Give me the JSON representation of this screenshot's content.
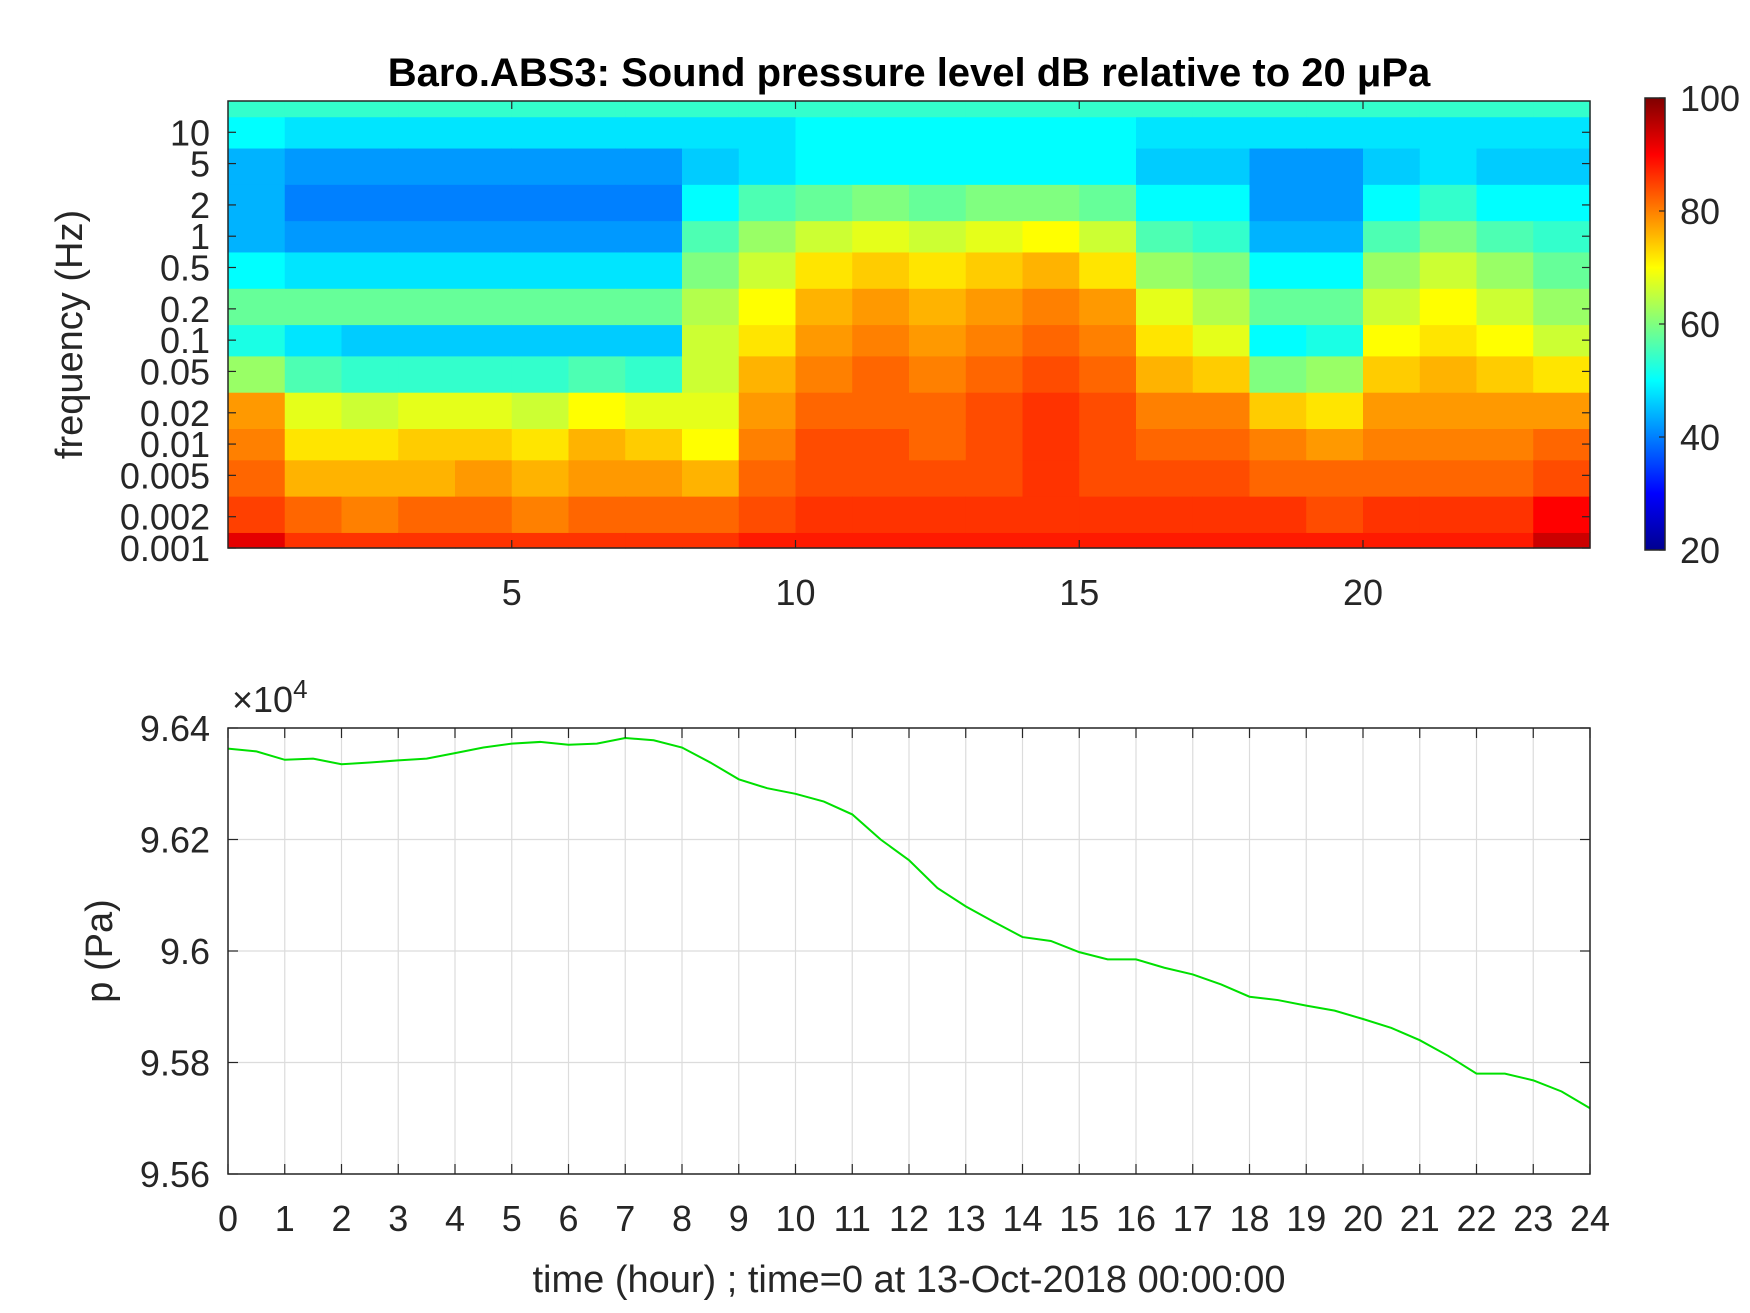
{
  "chart_data": [
    {
      "type": "heatmap",
      "title": "Baro.ABS3: Sound pressure level dB relative to 20 μPa",
      "xlabel": "",
      "ylabel": "frequency (Hz)",
      "xlim": [
        0,
        24
      ],
      "xticks": [
        5,
        10,
        15,
        20
      ],
      "xtick_labels": [
        "5",
        "10",
        "15",
        "20"
      ],
      "yscale": "log",
      "ylim": [
        0.001,
        20
      ],
      "yticks": [
        0.001,
        0.002,
        0.005,
        0.01,
        0.02,
        0.05,
        0.1,
        0.2,
        0.5,
        1,
        2,
        5,
        10
      ],
      "ytick_labels": [
        "0.001",
        "0.002",
        "0.005",
        "0.01",
        "0.02",
        "0.05",
        "0.1",
        "0.2",
        "0.5",
        "1",
        "2",
        "5",
        "10"
      ],
      "colormap": "jet",
      "colorbar": {
        "range": [
          20,
          100
        ],
        "ticks": [
          20,
          40,
          60,
          80,
          100
        ],
        "tick_labels": [
          "20",
          "40",
          "60",
          "80",
          "100"
        ]
      },
      "time_bins": [
        0.5,
        1.5,
        2.5,
        3.5,
        4.5,
        5.5,
        6.5,
        7.5,
        8.5,
        9.5,
        10.5,
        11.5,
        12.5,
        13.5,
        14.5,
        15.5,
        16.5,
        17.5,
        18.5,
        19.5,
        20.5,
        21.5,
        22.5,
        23.5
      ],
      "freq_bins": [
        0.001,
        0.002,
        0.005,
        0.01,
        0.02,
        0.05,
        0.1,
        0.2,
        0.5,
        1,
        2,
        5,
        10,
        20
      ],
      "spl_db": [
        [
          92,
          85,
          82,
          80,
          78,
          62,
          52,
          58,
          50,
          44,
          44,
          44,
          50,
          54
        ],
        [
          86,
          82,
          76,
          72,
          68,
          56,
          48,
          58,
          48,
          42,
          40,
          42,
          48,
          54
        ],
        [
          86,
          80,
          76,
          72,
          66,
          54,
          46,
          58,
          48,
          42,
          40,
          42,
          48,
          54
        ],
        [
          86,
          82,
          76,
          74,
          68,
          54,
          46,
          58,
          48,
          42,
          40,
          42,
          48,
          54
        ],
        [
          86,
          82,
          78,
          74,
          68,
          54,
          46,
          58,
          48,
          42,
          40,
          42,
          48,
          54
        ],
        [
          86,
          80,
          76,
          72,
          66,
          54,
          46,
          58,
          48,
          42,
          40,
          42,
          48,
          54
        ],
        [
          86,
          82,
          78,
          76,
          70,
          56,
          46,
          58,
          48,
          42,
          40,
          42,
          48,
          54
        ],
        [
          86,
          82,
          78,
          74,
          68,
          54,
          46,
          58,
          48,
          42,
          40,
          42,
          48,
          54
        ],
        [
          86,
          82,
          76,
          70,
          68,
          66,
          66,
          64,
          60,
          56,
          50,
          46,
          48,
          54
        ],
        [
          88,
          84,
          82,
          80,
          78,
          76,
          72,
          70,
          66,
          62,
          56,
          48,
          48,
          54
        ],
        [
          88,
          86,
          84,
          84,
          82,
          80,
          78,
          76,
          72,
          66,
          58,
          50,
          50,
          54
        ],
        [
          88,
          86,
          84,
          84,
          82,
          82,
          80,
          78,
          74,
          68,
          60,
          50,
          50,
          54
        ],
        [
          88,
          86,
          84,
          82,
          82,
          80,
          78,
          76,
          72,
          66,
          58,
          50,
          50,
          54
        ],
        [
          88,
          86,
          84,
          84,
          84,
          82,
          80,
          78,
          74,
          68,
          60,
          50,
          50,
          54
        ],
        [
          88,
          86,
          86,
          86,
          86,
          84,
          82,
          80,
          76,
          70,
          60,
          50,
          50,
          54
        ],
        [
          88,
          86,
          84,
          84,
          84,
          82,
          80,
          78,
          72,
          66,
          58,
          50,
          50,
          54
        ],
        [
          88,
          86,
          84,
          82,
          80,
          76,
          72,
          68,
          62,
          56,
          50,
          46,
          48,
          54
        ],
        [
          88,
          86,
          84,
          82,
          80,
          74,
          68,
          64,
          60,
          54,
          50,
          46,
          48,
          54
        ],
        [
          88,
          86,
          82,
          80,
          74,
          60,
          50,
          58,
          50,
          44,
          42,
          42,
          48,
          54
        ],
        [
          88,
          84,
          82,
          78,
          72,
          62,
          52,
          58,
          50,
          44,
          42,
          42,
          48,
          54
        ],
        [
          88,
          86,
          82,
          80,
          78,
          74,
          70,
          66,
          62,
          56,
          50,
          46,
          48,
          54
        ],
        [
          88,
          86,
          82,
          80,
          78,
          76,
          72,
          70,
          66,
          60,
          54,
          48,
          48,
          54
        ],
        [
          88,
          86,
          82,
          80,
          78,
          74,
          70,
          66,
          62,
          56,
          50,
          46,
          48,
          54
        ],
        [
          94,
          90,
          84,
          82,
          78,
          72,
          66,
          62,
          58,
          54,
          50,
          46,
          48,
          54
        ]
      ]
    },
    {
      "type": "line",
      "title": "",
      "xlabel": "time (hour) ; time=0 at 13-Oct-2018 00:00:00",
      "ylabel": "p (Pa)",
      "y_exponent_label": "×10",
      "y_exponent_power": "4",
      "xlim": [
        0,
        24
      ],
      "ylim": [
        9.56,
        9.64
      ],
      "xticks": [
        0,
        1,
        2,
        3,
        4,
        5,
        6,
        7,
        8,
        9,
        10,
        11,
        12,
        13,
        14,
        15,
        16,
        17,
        18,
        19,
        20,
        21,
        22,
        23,
        24
      ],
      "xtick_labels": [
        "0",
        "1",
        "2",
        "3",
        "4",
        "5",
        "6",
        "7",
        "8",
        "9",
        "10",
        "11",
        "12",
        "13",
        "14",
        "15",
        "16",
        "17",
        "18",
        "19",
        "20",
        "21",
        "22",
        "23",
        "24"
      ],
      "yticks": [
        9.56,
        9.58,
        9.6,
        9.62,
        9.64
      ],
      "ytick_labels": [
        "9.56",
        "9.58",
        "9.6",
        "9.62",
        "9.64"
      ],
      "grid": true,
      "series": [
        {
          "color": "#00e000",
          "x": [
            0,
            0.5,
            1,
            1.5,
            2,
            2.5,
            3,
            3.5,
            4,
            4.5,
            5,
            5.5,
            6,
            6.5,
            7,
            7.5,
            8,
            8.5,
            9,
            9.5,
            10,
            10.5,
            11,
            11.5,
            12,
            12.5,
            13,
            13.5,
            14,
            14.5,
            15,
            15.5,
            16,
            16.5,
            17,
            17.5,
            18,
            18.5,
            19,
            19.5,
            20,
            20.5,
            21,
            21.5,
            22,
            22.5,
            23,
            23.5,
            24
          ],
          "y": [
            9.6363,
            9.6358,
            9.6343,
            9.6345,
            9.6335,
            9.6338,
            9.6342,
            9.6345,
            9.6355,
            9.6365,
            9.6372,
            9.6375,
            9.637,
            9.6372,
            9.6382,
            9.6378,
            9.6365,
            9.6338,
            9.6308,
            9.6292,
            9.6282,
            9.6268,
            9.6245,
            9.62,
            9.6163,
            9.6113,
            9.608,
            9.6052,
            9.6025,
            9.6018,
            9.5998,
            9.5985,
            9.5985,
            9.597,
            9.5958,
            9.594,
            9.5918,
            9.5912,
            9.5902,
            9.5893,
            9.5878,
            9.5862,
            9.584,
            9.5812,
            9.578,
            9.578,
            9.5768,
            9.5748,
            9.5718
          ]
        }
      ]
    }
  ]
}
